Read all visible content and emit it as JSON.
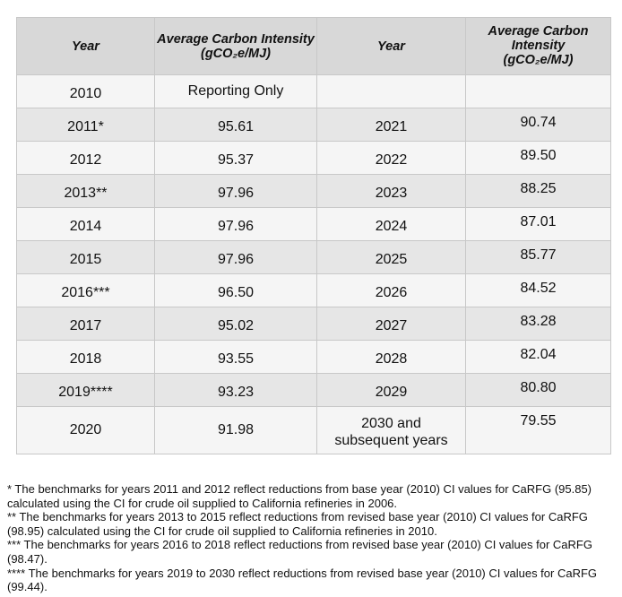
{
  "table": {
    "headers": [
      "Year",
      "Average Carbon Intensity (gCO₂e/MJ)",
      "Year",
      "Average Carbon Intensity (gCO₂e/MJ)"
    ],
    "header_ci_line1": "Average Carbon Intensity",
    "header_ci_line2": "(gCO₂e/MJ)",
    "header_ci_right_line1": "Average Carbon",
    "header_ci_right_line2": "Intensity",
    "header_ci_right_line3": "(gCO₂e/MJ)",
    "rows": [
      {
        "year": "2010",
        "value": "Reporting Only",
        "year2": "",
        "value2": ""
      },
      {
        "year": "2011*",
        "value": "95.61",
        "year2": "2021",
        "value2": "90.74"
      },
      {
        "year": "2012",
        "value": "95.37",
        "year2": "2022",
        "value2": "89.50"
      },
      {
        "year": "2013**",
        "value": "97.96",
        "year2": "2023",
        "value2": "88.25"
      },
      {
        "year": "2014",
        "value": "97.96",
        "year2": "2024",
        "value2": "87.01"
      },
      {
        "year": "2015",
        "value": "97.96",
        "year2": "2025",
        "value2": "85.77"
      },
      {
        "year": "2016***",
        "value": "96.50",
        "year2": "2026",
        "value2": "84.52"
      },
      {
        "year": "2017",
        "value": "95.02",
        "year2": "2027",
        "value2": "83.28"
      },
      {
        "year": "2018",
        "value": "93.55",
        "year2": "2028",
        "value2": "82.04"
      },
      {
        "year": "2019****",
        "value": "93.23",
        "year2": "2029",
        "value2": "80.80"
      },
      {
        "year": "2020",
        "value": "91.98",
        "year2_line1": "2030 and",
        "year2_line2": "subsequent years",
        "value2": "79.55"
      }
    ]
  },
  "colors": {
    "header_bg": "#d8d8d8",
    "row_gray": "#e6e6e6",
    "row_light": "#f5f5f5",
    "border": "#c8c8c8"
  },
  "notes": [
    "* The benchmarks for years 2011 and 2012 reflect reductions from base year (2010) CI values for CaRFG (95.85) calculated using the CI for crude oil supplied to California refineries in 2006.",
    "** The benchmarks for years 2013 to 2015 reflect reductions from revised base year (2010) CI values for CaRFG (98.95) calculated using the CI for crude oil supplied to California refineries in 2010.",
    "*** The benchmarks for years 2016 to 2018 reflect reductions from revised base year (2010) CI values for CaRFG (98.47).",
    "**** The benchmarks for years 2019 to 2030 reflect reductions from revised base year (2010) CI values for CaRFG (99.44)."
  ]
}
